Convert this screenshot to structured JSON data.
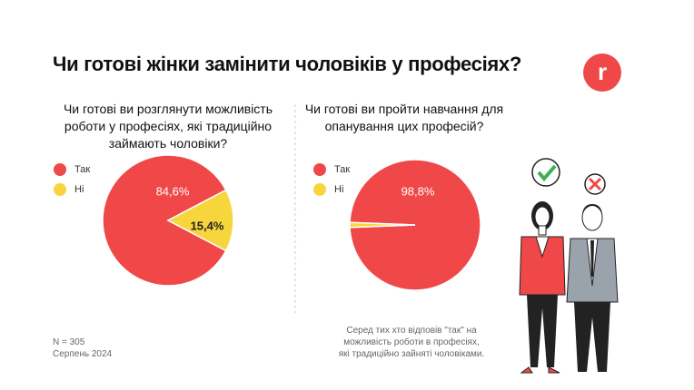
{
  "title": "Чи готові жінки замінити чоловіків у професіях?",
  "logo": "r",
  "chart_data": [
    {
      "type": "pie",
      "title": "Чи готові ви розглянути можливість роботи у професіях, які традиційно займають чоловіки?",
      "categories": [
        "Так",
        "Ні"
      ],
      "values": [
        84.6,
        15.4
      ],
      "value_labels": [
        "84,6%",
        "15,4%"
      ],
      "colors": [
        "#f04848",
        "#f7d53c"
      ]
    },
    {
      "type": "pie",
      "title": "Чи готові ви пройти навчання для опанування цих професій?",
      "categories": [
        "Так",
        "Ні"
      ],
      "values": [
        98.8,
        1.2
      ],
      "value_labels": [
        "98,8%",
        null
      ],
      "colors": [
        "#f04848",
        "#f7d53c"
      ]
    }
  ],
  "sample": "N = 305",
  "date": "Серпень 2024",
  "note": "Серед тих хто відповів \"так\" на можливість роботи в професіях, які традиційно зайняті чоловіками."
}
